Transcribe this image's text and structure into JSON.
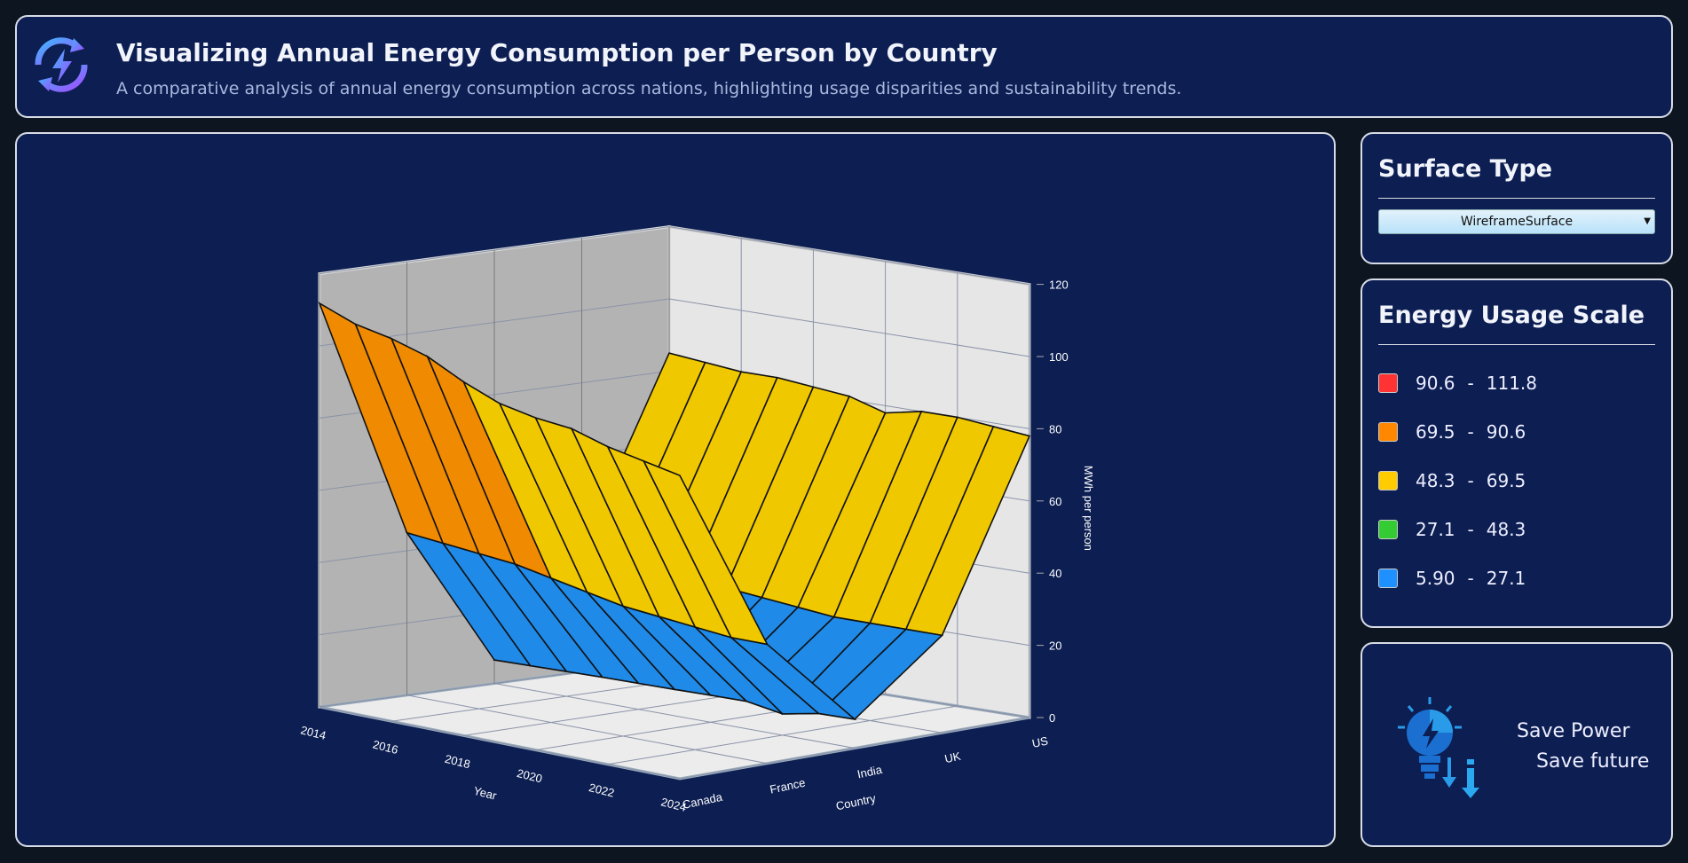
{
  "header": {
    "title": "Visualizing Annual Energy Consumption per Person by Country",
    "subtitle": "A comparative analysis of annual energy consumption across nations, highlighting usage disparities and sustainability trends.",
    "icon": "energy-cycle-icon"
  },
  "surface_panel": {
    "title": "Surface Type",
    "selected": "WireframeSurface"
  },
  "legend_panel": {
    "title": "Energy Usage Scale",
    "items": [
      {
        "from": "90.6",
        "to": "111.8",
        "color": "#ff3333"
      },
      {
        "from": "69.5",
        "to": "90.6",
        "color": "#ff8800"
      },
      {
        "from": "48.3",
        "to": "69.5",
        "color": "#ffcc00"
      },
      {
        "from": "27.1",
        "to": "48.3",
        "color": "#33cc33"
      },
      {
        "from": "5.90",
        "to": "27.1",
        "color": "#1e90ff"
      }
    ]
  },
  "save_panel": {
    "line1": "Save Power",
    "line2": "Save future",
    "icon": "lightbulb-icon"
  },
  "chart_data": {
    "type": "surface",
    "xlabel": "Year",
    "ylabel": "Country",
    "zlabel": "MWh per person",
    "year_ticks": [
      "2014",
      "2016",
      "2018",
      "2020",
      "2022",
      "2024"
    ],
    "years": [
      2014,
      2015,
      2016,
      2017,
      2018,
      2019,
      2020,
      2021,
      2022,
      2023,
      2024
    ],
    "countries": [
      "Canada",
      "France",
      "India",
      "UK",
      "US"
    ],
    "zlim": [
      0,
      120
    ],
    "z_ticks": [
      "0",
      "20",
      "40",
      "60",
      "80",
      "100",
      "120"
    ],
    "values": {
      "Canada": [
        111.8,
        108,
        106,
        103,
        98,
        94,
        92,
        91,
        88,
        86,
        84
      ],
      "France": [
        45,
        44,
        43,
        42,
        40,
        38,
        36,
        35,
        34,
        33,
        33
      ],
      "India": [
        6.5,
        6.7,
        6.9,
        7.1,
        7.2,
        7.3,
        7.5,
        7.6,
        5.9,
        7.8,
        8.0
      ],
      "UK": [
        34,
        33,
        32,
        31,
        30,
        29,
        28,
        27,
        27,
        27,
        27
      ],
      "US": [
        85,
        84,
        83,
        83,
        82,
        81,
        78,
        80,
        80,
        79,
        78
      ]
    },
    "bands": [
      [
        90.6,
        111.8,
        "#e03535"
      ],
      [
        69.5,
        90.6,
        "#f08a00"
      ],
      [
        48.3,
        69.5,
        "#f0c800"
      ],
      [
        27.1,
        48.3,
        "#2eb82e"
      ],
      [
        5.9,
        27.1,
        "#1f8ae8"
      ]
    ]
  }
}
